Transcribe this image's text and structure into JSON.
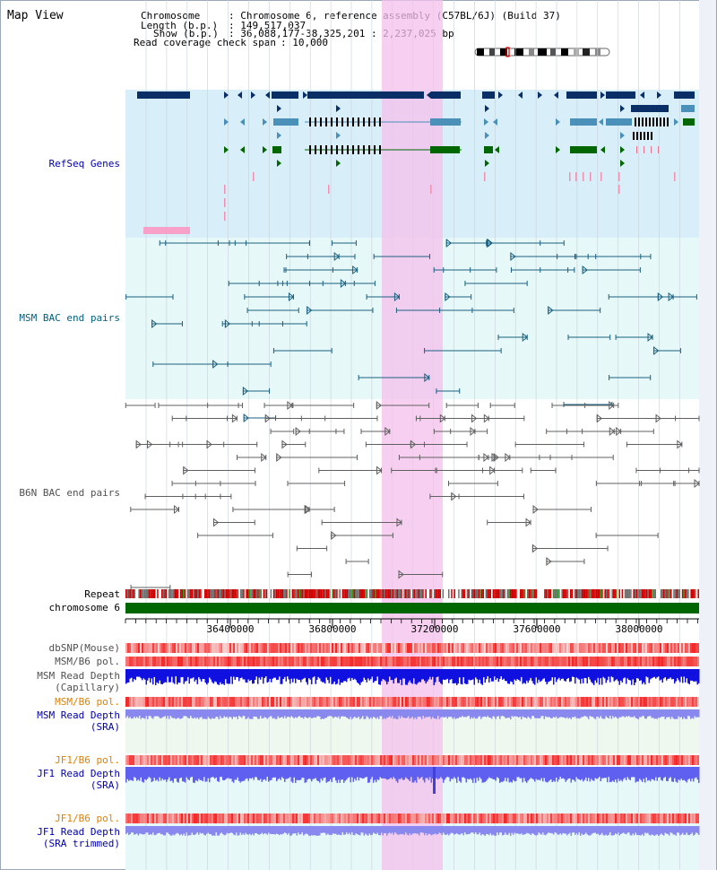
{
  "title": "Map View",
  "info": {
    "chromosome_label": "Chromosome",
    "chromosome_value": ": Chromosome 6, reference assembly (C57BL/6J) (Build 37)",
    "length_label": "Length (b.p.)",
    "length_value": ": 149,517,037",
    "show_label": "Show (b.p.)",
    "show_value": ": 36,088,177-38,325,201 : 2,237,025 bp",
    "coverage_label": "Read coverage check span",
    "coverage_value": ": 10,000"
  },
  "tracks": {
    "refseq": "RefSeq Genes",
    "msm_bac": "MSM BAC end pairs",
    "b6n_bac": "B6N BAC end pairs",
    "repeat": "Repeat",
    "chromosome": "chromosome 6",
    "dbsnp": "dbSNP(Mouse)",
    "msm_b6_pol_1": "MSM/B6 pol.",
    "msm_depth_cap_1": "MSM Read Depth",
    "msm_depth_cap_2": "(Capillary)",
    "msm_b6_pol_2": "MSM/B6 pol.",
    "msm_depth_sra_1": "MSM Read Depth",
    "msm_depth_sra_2": "(SRA)",
    "jf1_b6_pol_1": "JF1/B6 pol.",
    "jf1_depth_sra_1": "JF1 Read Depth",
    "jf1_depth_sra_2": "(SRA)",
    "jf1_b6_pol_2": "JF1/B6 pol.",
    "jf1_depth_trim_1": "JF1 Read Depth",
    "jf1_depth_trim_2": "(SRA trimmed)"
  },
  "axis_ticks": [
    "36400000",
    "36800000",
    "37200000",
    "37600000",
    "38000000"
  ],
  "colors": {
    "refseq_bg": "#d8eef8",
    "bac_bg": "#e6f8f8",
    "highlight": "#f4c0ec",
    "refseq_label": "#0000aa",
    "msm_label": "#006080",
    "b6n_label": "#505050",
    "orange_label": "#e08000",
    "blue_label": "#0000aa"
  }
}
